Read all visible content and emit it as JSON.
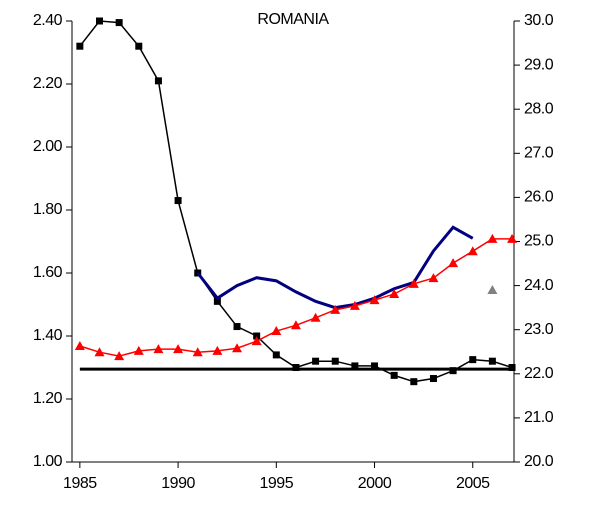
{
  "chart_data": {
    "type": "line",
    "title": "ROMANIA",
    "x": [
      1985,
      1986,
      1987,
      1988,
      1989,
      1990,
      1991,
      1992,
      1993,
      1994,
      1995,
      1996,
      1997,
      1998,
      1999,
      2000,
      2001,
      2002,
      2003,
      2004,
      2005,
      2006,
      2007
    ],
    "series": [
      {
        "color": "#000000",
        "marker": "square",
        "axis": "y",
        "values": [
          2.32,
          2.4,
          2.395,
          2.32,
          2.21,
          1.83,
          1.6,
          1.51,
          1.43,
          1.4,
          1.34,
          1.3,
          1.32,
          1.32,
          1.305,
          1.305,
          1.275,
          1.255,
          1.265,
          1.29,
          1.325,
          1.32,
          1.3
        ]
      },
      {
        "color": "#000000",
        "marker": null,
        "axis": "y",
        "values": [
          1.295,
          1.295,
          1.295,
          1.295,
          1.295,
          1.295,
          1.295,
          1.295,
          1.295,
          1.295,
          1.295,
          1.295,
          1.295,
          1.295,
          1.295,
          1.295,
          1.295,
          1.295,
          1.295,
          1.295,
          1.295,
          1.295,
          1.295
        ]
      },
      {
        "color": "#000080",
        "marker": null,
        "axis": "y",
        "values": [
          null,
          null,
          null,
          null,
          null,
          null,
          1.6,
          1.52,
          1.56,
          1.585,
          1.575,
          1.54,
          1.51,
          1.49,
          1.5,
          1.52,
          1.55,
          1.57,
          1.67,
          1.745,
          1.71,
          null,
          null
        ]
      },
      {
        "color": "#ff0000",
        "marker": "triangle",
        "axis": "y2",
        "values": [
          22.63,
          22.49,
          22.4,
          22.52,
          22.56,
          22.56,
          22.49,
          22.52,
          22.58,
          22.74,
          22.97,
          23.1,
          23.27,
          23.45,
          23.54,
          23.67,
          23.81,
          24.04,
          24.17,
          24.51,
          24.78,
          25.06,
          25.06
        ]
      },
      {
        "color": "#808080",
        "marker": "triangle",
        "axis": "y2",
        "values": [
          null,
          null,
          null,
          null,
          null,
          null,
          null,
          null,
          null,
          null,
          null,
          null,
          null,
          null,
          null,
          null,
          null,
          null,
          null,
          null,
          null,
          23.9,
          null
        ]
      }
    ],
    "xlim": [
      1984.6,
      2007.1
    ],
    "xticks": [
      1985,
      1990,
      1995,
      2000,
      2005
    ],
    "ylim": [
      1.0,
      2.4
    ],
    "yticks": [
      {
        "value": 1.0,
        "label": "1.00"
      },
      {
        "value": 1.2,
        "label": "1.20"
      },
      {
        "value": 1.4,
        "label": "1.40"
      },
      {
        "value": 1.6,
        "label": "1.60"
      },
      {
        "value": 1.8,
        "label": "1.80"
      },
      {
        "value": 2.0,
        "label": "2.00"
      },
      {
        "value": 2.2,
        "label": "2.20"
      },
      {
        "value": 2.4,
        "label": "2.40"
      }
    ],
    "y2lim": [
      20,
      30
    ],
    "y2ticks": [
      {
        "value": 20,
        "label": "20.0"
      },
      {
        "value": 21,
        "label": "21.0"
      },
      {
        "value": 22,
        "label": "22.0"
      },
      {
        "value": 23,
        "label": "23.0"
      },
      {
        "value": 24,
        "label": "24.0"
      },
      {
        "value": 25,
        "label": "25.0"
      },
      {
        "value": 26,
        "label": "26.0"
      },
      {
        "value": 27,
        "label": "27.0"
      },
      {
        "value": 28,
        "label": "28.0"
      },
      {
        "value": 29,
        "label": "29.0"
      },
      {
        "value": 30,
        "label": "30.0"
      }
    ]
  }
}
